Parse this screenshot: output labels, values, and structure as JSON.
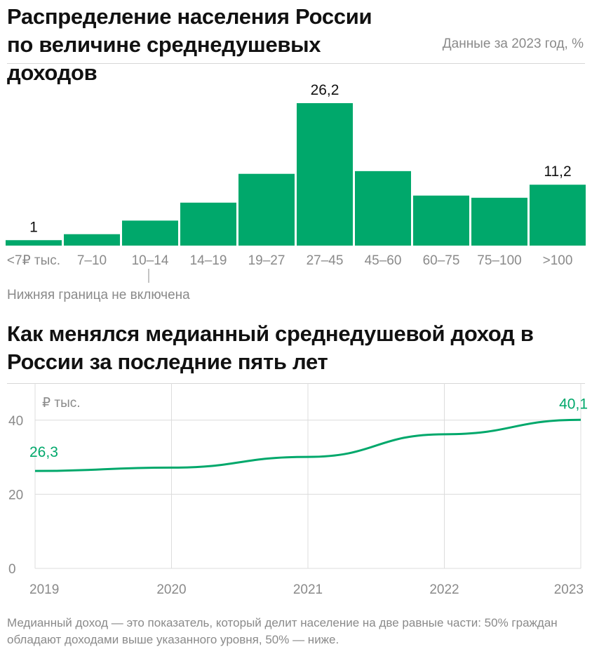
{
  "colors": {
    "accent": "#00a86b",
    "muted": "#8a8a8a",
    "grid": "#dcdcdc"
  },
  "chart_data": [
    {
      "type": "bar",
      "title": "Распределение населения России по величине среднедушевых доходов",
      "subtitle": "Данные за 2023 год, %",
      "categories": [
        "<7₽ тыс.",
        "7–10",
        "10–14",
        "14–19",
        "19–27",
        "27–45",
        "45–60",
        "60–75",
        "75–100",
        ">100"
      ],
      "values": [
        1,
        2.1,
        4.6,
        7.9,
        13.2,
        26.2,
        13.7,
        9.2,
        8.8,
        11.2
      ],
      "data_labels": {
        "0": "1",
        "5": "26,2",
        "9": "11,2"
      },
      "annotation": "Нижняя граница не включена",
      "ylim": [
        0,
        26.2
      ]
    },
    {
      "type": "line",
      "title": "Как менялся медианный среднедушевой доход в России за последние пять лет",
      "ylabel": "₽ тыс.",
      "x": [
        "2019",
        "2020",
        "2021",
        "2022",
        "2023"
      ],
      "values": [
        26.3,
        27.2,
        30.1,
        36.2,
        40.1
      ],
      "data_labels": {
        "0": "26,3",
        "4": "40,1"
      },
      "y_ticks": [
        "0",
        "20",
        "40"
      ],
      "ylim": [
        0,
        50
      ],
      "grid": true
    }
  ],
  "note": "Медианный доход — это показатель, который делит население на две равные части: 50% граждан обладают доходами выше указанного уровня, 50% — ниже."
}
